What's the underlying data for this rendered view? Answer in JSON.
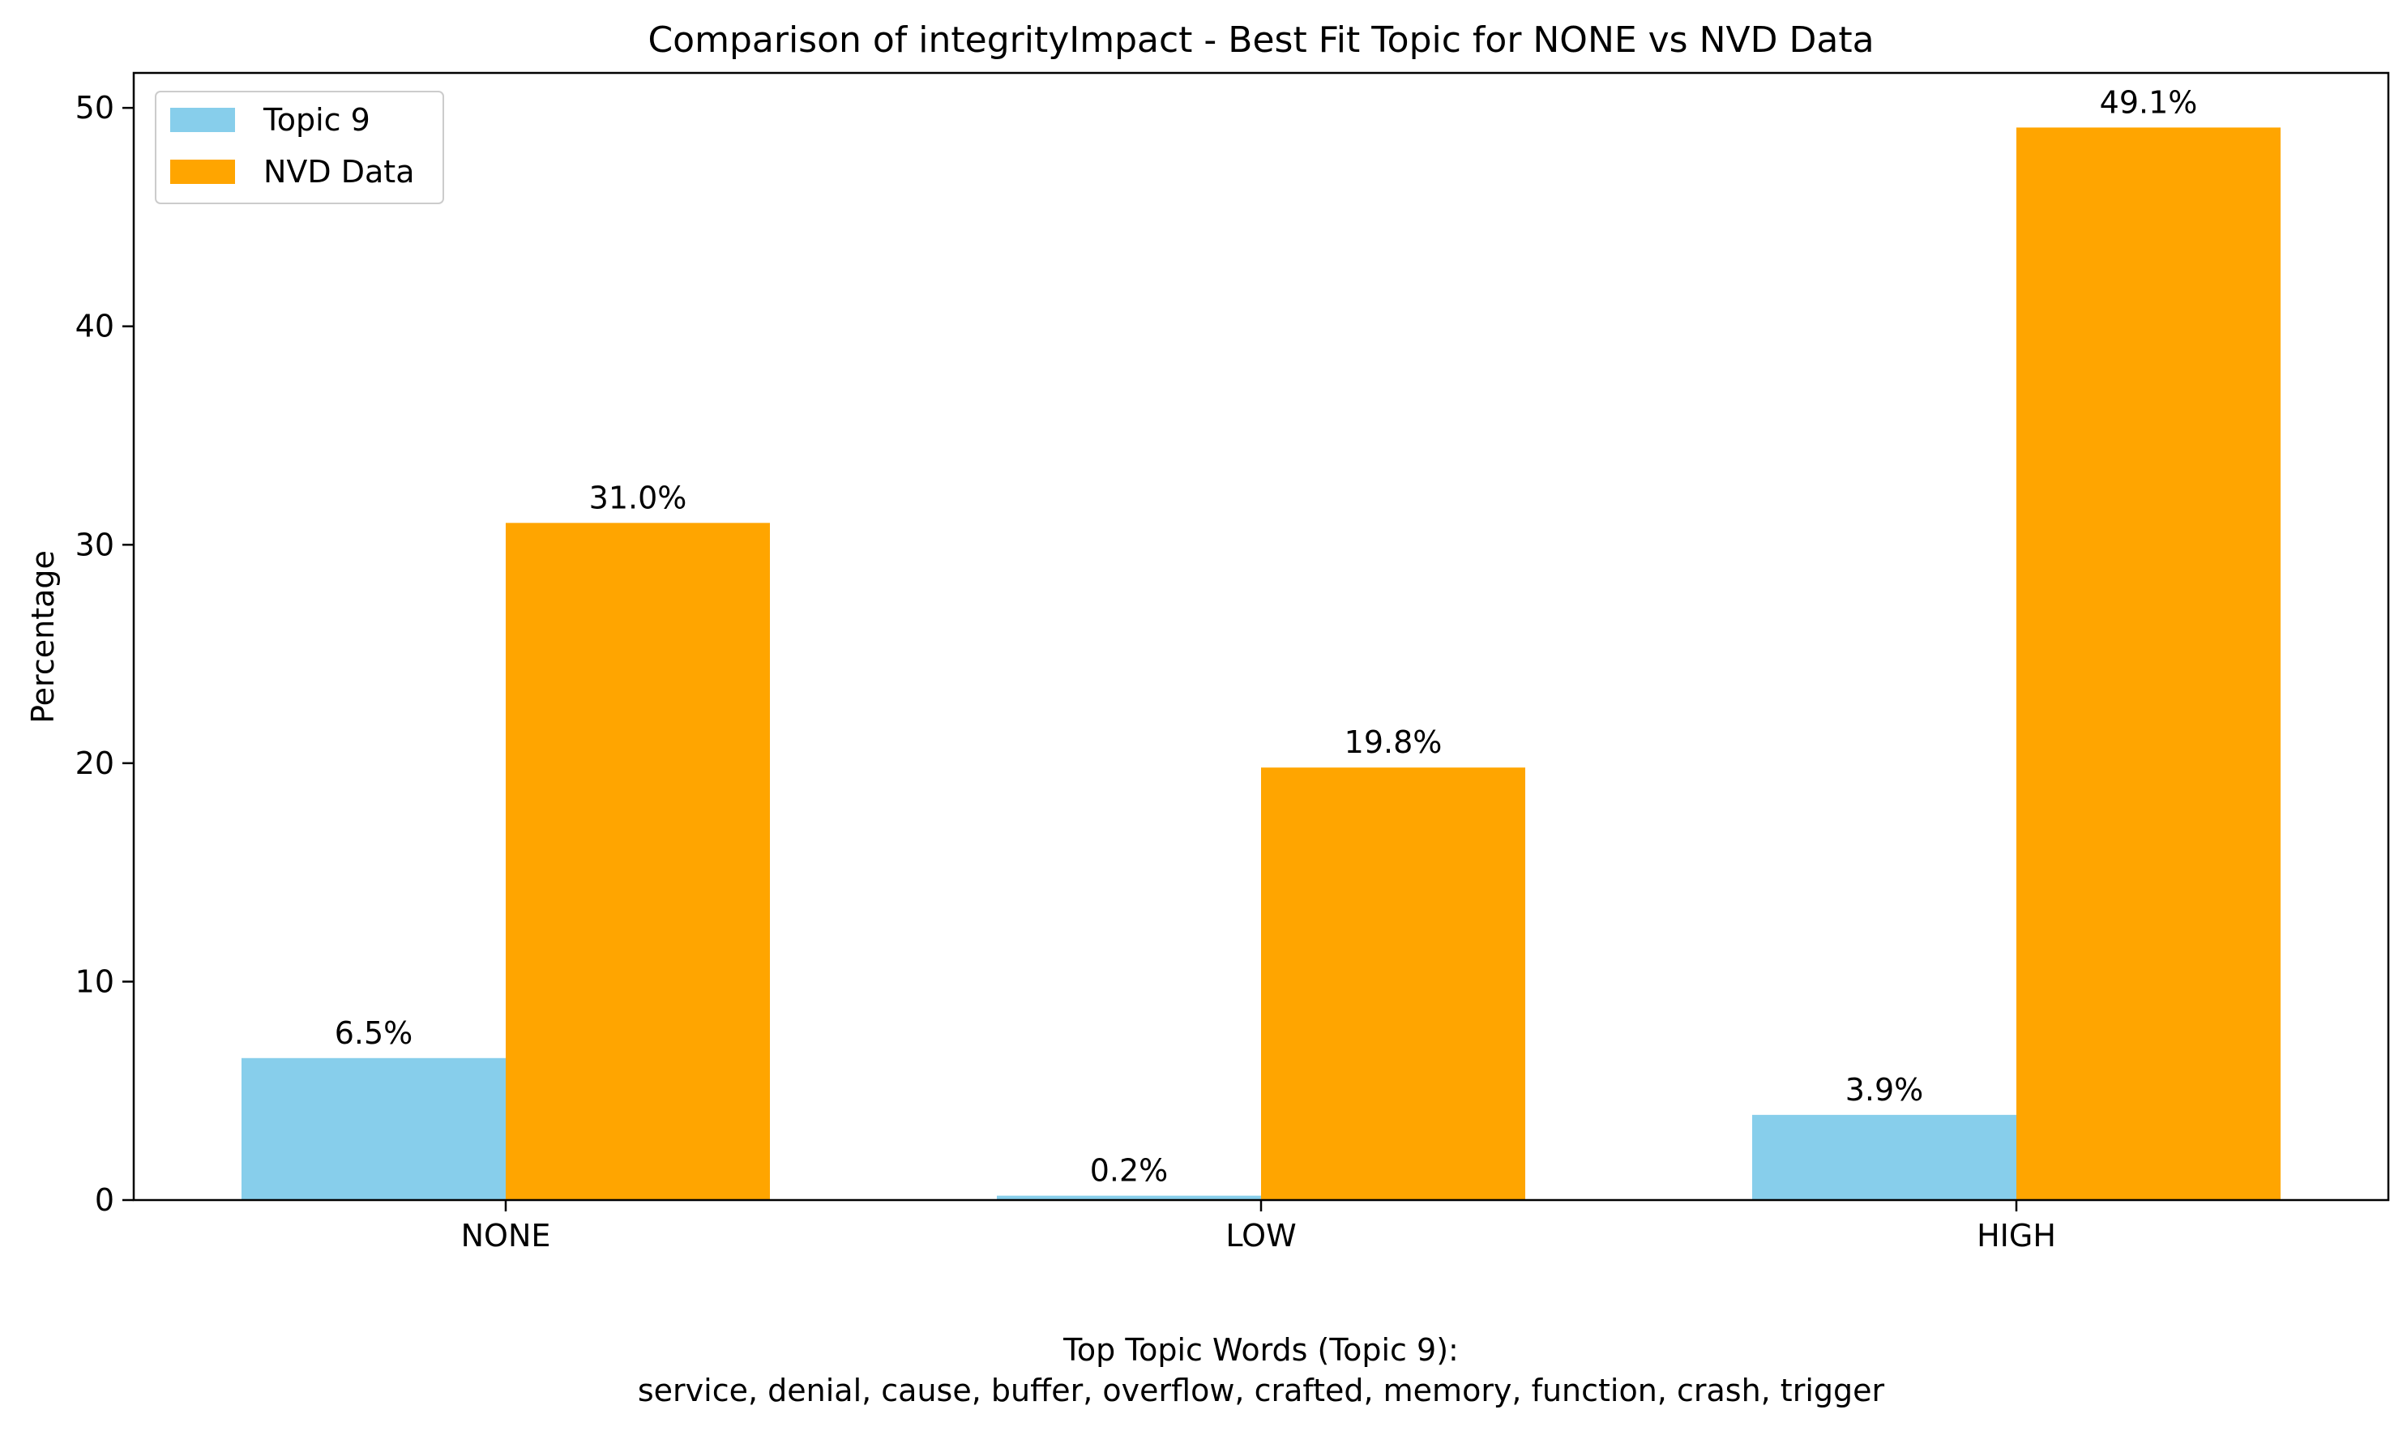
{
  "chart_data": {
    "type": "bar",
    "title": "Comparison of integrityImpact - Best Fit Topic for NONE vs NVD Data",
    "xlabel": "",
    "ylabel": "Percentage",
    "categories": [
      "NONE",
      "LOW",
      "HIGH"
    ],
    "series": [
      {
        "name": "Topic 9",
        "values": [
          6.5,
          0.2,
          3.9
        ],
        "labels": [
          "6.5%",
          "0.2%",
          "3.9%"
        ],
        "color": "#87CEEB"
      },
      {
        "name": "NVD Data",
        "values": [
          31.0,
          19.8,
          49.1
        ],
        "labels": [
          "31.0%",
          "19.8%",
          "49.1%"
        ],
        "color": "#FFA500"
      }
    ],
    "ylim": [
      0,
      51.6
    ],
    "yticks": [
      0,
      10,
      20,
      30,
      40,
      50
    ],
    "ytick_labels": [
      "0",
      "10",
      "20",
      "30",
      "40",
      "50"
    ],
    "grid": false,
    "legend_position": "top-left",
    "caption": {
      "line1": "Top Topic Words (Topic 9):",
      "line2": "service,  denial,  cause,  buffer,  overflow,  crafted,  memory,  function,  crash,  trigger"
    }
  }
}
